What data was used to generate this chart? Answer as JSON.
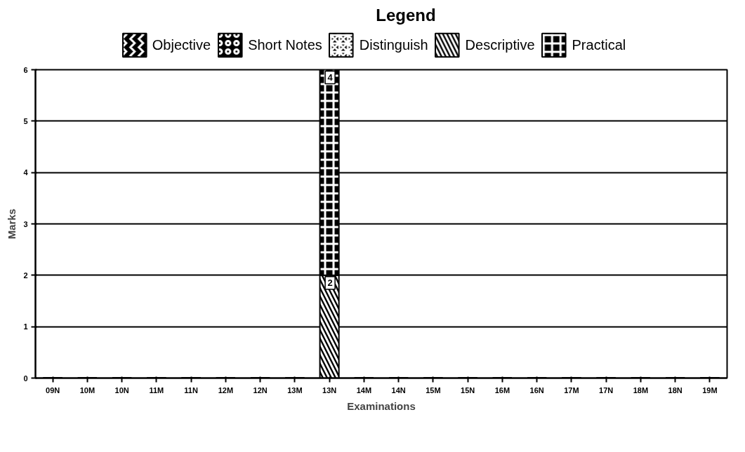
{
  "chart_data": {
    "type": "bar",
    "stacked": true,
    "legend_title": "Legend",
    "xlabel": "Examinations",
    "ylabel": "Marks",
    "categories": [
      "09N",
      "10M",
      "10N",
      "11M",
      "11N",
      "12M",
      "12N",
      "13M",
      "13N",
      "14M",
      "14N",
      "15M",
      "15N",
      "16M",
      "16N",
      "17M",
      "17N",
      "18M",
      "18N",
      "19M"
    ],
    "series": [
      {
        "name": "Objective",
        "color": "#000000",
        "values": [
          0,
          0,
          0,
          0,
          0,
          0,
          0,
          0,
          0,
          0,
          0,
          0,
          0,
          0,
          0,
          0,
          0,
          0,
          0,
          0
        ]
      },
      {
        "name": "Short Notes",
        "color": "#000000",
        "values": [
          0,
          0,
          0,
          0,
          0,
          0,
          0,
          0,
          0,
          0,
          0,
          0,
          0,
          0,
          0,
          0,
          0,
          0,
          0,
          0
        ]
      },
      {
        "name": "Distinguish",
        "color": "#000000",
        "values": [
          0,
          0,
          0,
          0,
          0,
          0,
          0,
          0,
          0,
          0,
          0,
          0,
          0,
          0,
          0,
          0,
          0,
          0,
          0,
          0
        ]
      },
      {
        "name": "Descriptive",
        "color": "#000000",
        "values": [
          0,
          0,
          0,
          0,
          0,
          0,
          0,
          0,
          2,
          0,
          0,
          0,
          0,
          0,
          0,
          0,
          0,
          0,
          0,
          0
        ],
        "value_labels": [
          null,
          null,
          null,
          null,
          null,
          null,
          null,
          null,
          "2",
          null,
          null,
          null,
          null,
          null,
          null,
          null,
          null,
          null,
          null,
          null
        ]
      },
      {
        "name": "Practical",
        "color": "#000000",
        "values": [
          0,
          0,
          0,
          0,
          0,
          0,
          0,
          0,
          4,
          0,
          0,
          0,
          0,
          0,
          0,
          0,
          0,
          0,
          0,
          0
        ],
        "value_labels": [
          null,
          null,
          null,
          null,
          null,
          null,
          null,
          null,
          "4",
          null,
          null,
          null,
          null,
          null,
          null,
          null,
          null,
          null,
          null,
          null
        ]
      }
    ],
    "ylim": [
      0,
      6
    ],
    "yticks": [
      0,
      1,
      2,
      3,
      4,
      5,
      6
    ],
    "grid": "y",
    "legend": "top"
  }
}
